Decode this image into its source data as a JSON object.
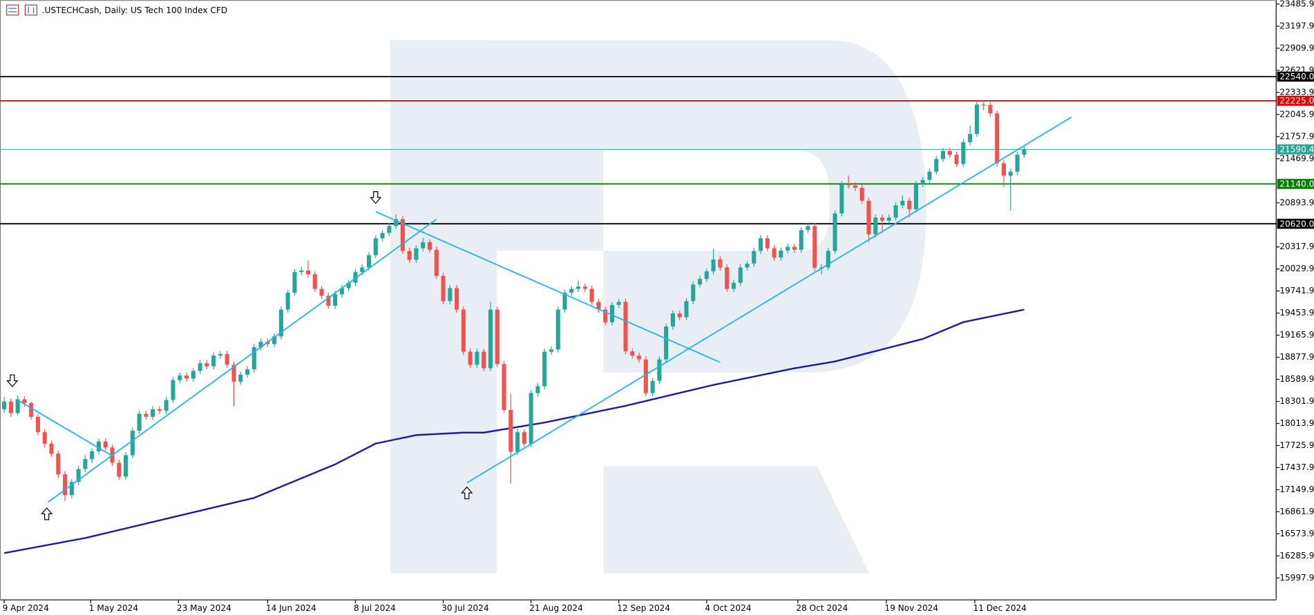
{
  "chart_data": {
    "type": "candlestick",
    "title": ".USTECHCash, Daily:  US Tech 100 Index CFD",
    "up_color": "#26a69a",
    "down_color": "#ef5350",
    "ylim": [
      15711,
      23540
    ],
    "yticks": [
      15997.9,
      16285.9,
      16573.9,
      16861.9,
      17149.9,
      17437.9,
      17725.9,
      18013.9,
      18301.9,
      18589.9,
      18877.9,
      19165.9,
      19453.9,
      19741.9,
      20029.9,
      20317.9,
      20893.9,
      21469.9,
      21757.9,
      22045.9,
      22333.9,
      22621.9,
      22909.9,
      23197.9,
      23485.9
    ],
    "xlim": [
      -0.6,
      188
    ],
    "xticks": [
      {
        "value": 0,
        "label": "9 Apr 2024"
      },
      {
        "value": 12.8,
        "label": "1 May 2024"
      },
      {
        "value": 25.8,
        "label": "23 May 2024"
      },
      {
        "value": 39,
        "label": "14 Jun 2024"
      },
      {
        "value": 52,
        "label": "8 Jul 2024"
      },
      {
        "value": 65,
        "label": "30 Jul 2024"
      },
      {
        "value": 78,
        "label": "21 Aug 2024"
      },
      {
        "value": 91,
        "label": "12 Sep 2024"
      },
      {
        "value": 104,
        "label": "4 Oct 2024"
      },
      {
        "value": 117.5,
        "label": "28 Oct 2024"
      },
      {
        "value": 130.6,
        "label": "19 Nov 2024"
      },
      {
        "value": 143.7,
        "label": "11 Dec 2024"
      }
    ],
    "ohlc": [
      [
        18200,
        18360,
        18150,
        18300
      ],
      [
        18300,
        18340,
        18100,
        18150
      ],
      [
        18150,
        18380,
        18120,
        18330
      ],
      [
        18330,
        18370,
        18230,
        18280
      ],
      [
        18280,
        18300,
        18060,
        18100
      ],
      [
        18100,
        18140,
        17860,
        17900
      ],
      [
        17900,
        17940,
        17700,
        17750
      ],
      [
        17750,
        17790,
        17580,
        17620
      ],
      [
        17620,
        17660,
        17300,
        17350
      ],
      [
        17350,
        17390,
        17000,
        17080
      ],
      [
        17080,
        17290,
        17040,
        17250
      ],
      [
        17250,
        17460,
        17210,
        17420
      ],
      [
        17420,
        17600,
        17380,
        17550
      ],
      [
        17550,
        17690,
        17500,
        17650
      ],
      [
        17650,
        17820,
        17610,
        17780
      ],
      [
        17780,
        17820,
        17660,
        17700
      ],
      [
        17700,
        17740,
        17460,
        17500
      ],
      [
        17500,
        17540,
        17280,
        17320
      ],
      [
        17320,
        17640,
        17280,
        17600
      ],
      [
        17600,
        17960,
        17560,
        17920
      ],
      [
        17920,
        18180,
        17880,
        18140
      ],
      [
        18140,
        18180,
        18060,
        18100
      ],
      [
        18100,
        18240,
        18060,
        18200
      ],
      [
        18200,
        18240,
        18140,
        18180
      ],
      [
        18180,
        18360,
        18140,
        18320
      ],
      [
        18320,
        18620,
        18280,
        18580
      ],
      [
        18580,
        18680,
        18540,
        18640
      ],
      [
        18640,
        18680,
        18560,
        18600
      ],
      [
        18600,
        18740,
        18560,
        18700
      ],
      [
        18700,
        18840,
        18660,
        18800
      ],
      [
        18800,
        18840,
        18720,
        18760
      ],
      [
        18760,
        18940,
        18720,
        18900
      ],
      [
        18900,
        18960,
        18860,
        18920
      ],
      [
        18920,
        18960,
        18740,
        18780
      ],
      [
        18780,
        18820,
        18240,
        18560
      ],
      [
        18560,
        18690,
        18520,
        18650
      ],
      [
        18650,
        18760,
        18610,
        18720
      ],
      [
        18720,
        19050,
        18680,
        19010
      ],
      [
        19010,
        19120,
        18970,
        19080
      ],
      [
        19080,
        19120,
        19010,
        19050
      ],
      [
        19050,
        19190,
        19010,
        19150
      ],
      [
        19150,
        19540,
        19110,
        19500
      ],
      [
        19500,
        19760,
        19460,
        19720
      ],
      [
        19720,
        20030,
        19680,
        19990
      ],
      [
        19990,
        20060,
        19950,
        20010
      ],
      [
        20010,
        20140,
        19920,
        19960
      ],
      [
        19960,
        20000,
        19730,
        19770
      ],
      [
        19770,
        19810,
        19640,
        19680
      ],
      [
        19680,
        19720,
        19510,
        19550
      ],
      [
        19550,
        19740,
        19510,
        19700
      ],
      [
        19700,
        19820,
        19660,
        19780
      ],
      [
        19780,
        19890,
        19740,
        19850
      ],
      [
        19850,
        20030,
        19810,
        19990
      ],
      [
        19990,
        20090,
        19950,
        20050
      ],
      [
        20050,
        20250,
        20010,
        20210
      ],
      [
        20210,
        20470,
        20170,
        20430
      ],
      [
        20430,
        20540,
        20390,
        20500
      ],
      [
        20500,
        20630,
        20460,
        20590
      ],
      [
        20590,
        20740,
        20550,
        20680
      ],
      [
        20680,
        20720,
        20225,
        20265
      ],
      [
        20265,
        20305,
        20110,
        20150
      ],
      [
        20150,
        20340,
        20110,
        20300
      ],
      [
        20300,
        20440,
        20260,
        20380
      ],
      [
        20380,
        20420,
        20240,
        20280
      ],
      [
        20280,
        20320,
        19900,
        19940
      ],
      [
        19940,
        19980,
        19570,
        19610
      ],
      [
        19610,
        19820,
        19570,
        19780
      ],
      [
        19780,
        19820,
        19460,
        19500
      ],
      [
        19500,
        19540,
        18910,
        18950
      ],
      [
        18950,
        18990,
        18740,
        18780
      ],
      [
        18780,
        18990,
        18740,
        18950
      ],
      [
        18950,
        18990,
        18695,
        18735
      ],
      [
        18735,
        19600,
        18695,
        19500
      ],
      [
        19500,
        19540,
        18750,
        18790
      ],
      [
        18790,
        18830,
        18150,
        18190
      ],
      [
        18190,
        18400,
        17230,
        17644
      ],
      [
        17644,
        17940,
        17604,
        17900
      ],
      [
        17900,
        17940,
        17710,
        17750
      ],
      [
        17750,
        18450,
        17710,
        18410
      ],
      [
        18410,
        18540,
        18370,
        18500
      ],
      [
        18500,
        18990,
        18460,
        18950
      ],
      [
        18950,
        19020,
        18910,
        18980
      ],
      [
        18980,
        19540,
        18940,
        19500
      ],
      [
        19500,
        19760,
        19460,
        19720
      ],
      [
        19720,
        19810,
        19680,
        19770
      ],
      [
        19770,
        19880,
        19730,
        19800
      ],
      [
        19800,
        19840,
        19730,
        19770
      ],
      [
        19770,
        19810,
        19560,
        19600
      ],
      [
        19600,
        19640,
        19460,
        19500
      ],
      [
        19500,
        19540,
        19295,
        19335
      ],
      [
        19335,
        19600,
        19295,
        19560
      ],
      [
        19560,
        19640,
        19520,
        19600
      ],
      [
        19600,
        19640,
        18915,
        18955
      ],
      [
        18955,
        18995,
        18860,
        18900
      ],
      [
        18900,
        18940,
        18810,
        18850
      ],
      [
        18850,
        18890,
        18370,
        18410
      ],
      [
        18410,
        18610,
        18370,
        18570
      ],
      [
        18570,
        18890,
        18530,
        18850
      ],
      [
        18850,
        19320,
        18810,
        19280
      ],
      [
        19280,
        19490,
        19240,
        19450
      ],
      [
        19450,
        19490,
        19360,
        19400
      ],
      [
        19400,
        19650,
        19360,
        19610
      ],
      [
        19610,
        19870,
        19570,
        19827
      ],
      [
        19827,
        19940,
        19787,
        19900
      ],
      [
        19900,
        20040,
        19860,
        20000
      ],
      [
        20000,
        20290,
        19960,
        20155
      ],
      [
        20155,
        20195,
        20010,
        20050
      ],
      [
        20050,
        20090,
        19730,
        19770
      ],
      [
        19770,
        19890,
        19730,
        19850
      ],
      [
        19850,
        20090,
        19810,
        20050
      ],
      [
        20050,
        20140,
        20010,
        20100
      ],
      [
        20100,
        20305,
        20060,
        20265
      ],
      [
        20265,
        20470,
        20225,
        20430
      ],
      [
        20430,
        20470,
        20260,
        20300
      ],
      [
        20300,
        20340,
        20140,
        20180
      ],
      [
        20180,
        20310,
        20140,
        20270
      ],
      [
        20270,
        20360,
        20230,
        20320
      ],
      [
        20320,
        20360,
        20240,
        20280
      ],
      [
        20280,
        20577,
        20240,
        20537
      ],
      [
        20537,
        20630,
        20497,
        20590
      ],
      [
        20590,
        20630,
        20005,
        20045
      ],
      [
        20045,
        20090,
        19960,
        20050
      ],
      [
        20050,
        20305,
        20010,
        20265
      ],
      [
        20265,
        20795,
        20225,
        20755
      ],
      [
        20755,
        21178,
        20715,
        21138
      ],
      [
        21138,
        21250,
        21080,
        21120
      ],
      [
        21120,
        21160,
        21050,
        21090
      ],
      [
        21090,
        21130,
        20880,
        20920
      ],
      [
        20920,
        20960,
        20380,
        20483
      ],
      [
        20483,
        20740,
        20443,
        20700
      ],
      [
        20700,
        20740,
        20500,
        20660
      ],
      [
        20660,
        20740,
        20620,
        20700
      ],
      [
        20700,
        20900,
        20660,
        20860
      ],
      [
        20860,
        20990,
        20820,
        20920
      ],
      [
        20920,
        20960,
        20700,
        20810
      ],
      [
        20810,
        21178,
        20770,
        21138
      ],
      [
        21138,
        21232,
        21098,
        21192
      ],
      [
        21192,
        21340,
        21152,
        21300
      ],
      [
        21300,
        21505,
        21260,
        21465
      ],
      [
        21465,
        21610,
        21425,
        21570
      ],
      [
        21570,
        21610,
        21480,
        21520
      ],
      [
        21520,
        21560,
        21360,
        21400
      ],
      [
        21400,
        21724,
        21360,
        21684
      ],
      [
        21684,
        21900,
        21644,
        21793
      ],
      [
        21793,
        22215,
        21753,
        22175
      ],
      [
        22175,
        22225,
        22100,
        22170
      ],
      [
        22170,
        22210,
        22020,
        22060
      ],
      [
        22060,
        22100,
        21370,
        21410
      ],
      [
        21410,
        21450,
        21100,
        21247
      ],
      [
        21247,
        21340,
        20790,
        21300
      ],
      [
        21300,
        21560,
        21260,
        21520
      ],
      [
        21520,
        21636,
        21480,
        21596
      ]
    ],
    "ma": {
      "color": "#1a1aa6",
      "x": [
        0,
        12,
        24,
        37,
        49,
        55,
        61,
        68,
        71,
        80,
        92,
        105,
        117,
        123,
        136,
        142,
        151
      ],
      "values": [
        16322,
        16519,
        16770,
        17043,
        17480,
        17752,
        17862,
        17895,
        17895,
        18026,
        18244,
        18517,
        18735,
        18823,
        19117,
        19336,
        19500
      ]
    },
    "trendlines": [
      {
        "color": "#1fb4ec",
        "x": [
          2,
          16
        ],
        "y": [
          18320,
          17590
        ]
      },
      {
        "color": "#1fb4ec",
        "x": [
          6.5,
          64
        ],
        "y": [
          16988,
          20679
        ]
      },
      {
        "color": "#1fb4ec",
        "x": [
          55,
          106
        ],
        "y": [
          20777,
          18812
        ]
      },
      {
        "color": "#1fb4ec",
        "x": [
          68.5,
          158
        ],
        "y": [
          17239,
          22011
        ]
      }
    ],
    "arrows": [
      {
        "x": 1.2,
        "y": 18571,
        "dir": "down"
      },
      {
        "x": 55,
        "y": 20963,
        "dir": "down"
      },
      {
        "x": 6.3,
        "y": 16835,
        "dir": "up"
      },
      {
        "x": 68.5,
        "y": 17108,
        "dir": "up"
      }
    ],
    "levels": [
      {
        "value": 22540,
        "label": "22540.0",
        "color": "#000000"
      },
      {
        "value": 22225,
        "label": "22225.0",
        "color": "#e00000"
      },
      {
        "value": 21590.4,
        "color": "#26a69a"
      },
      {
        "value": 21140,
        "label": "21140.0",
        "color": "#008000"
      },
      {
        "value": 20620,
        "label": "20620.0",
        "color": "#000000"
      }
    ]
  }
}
